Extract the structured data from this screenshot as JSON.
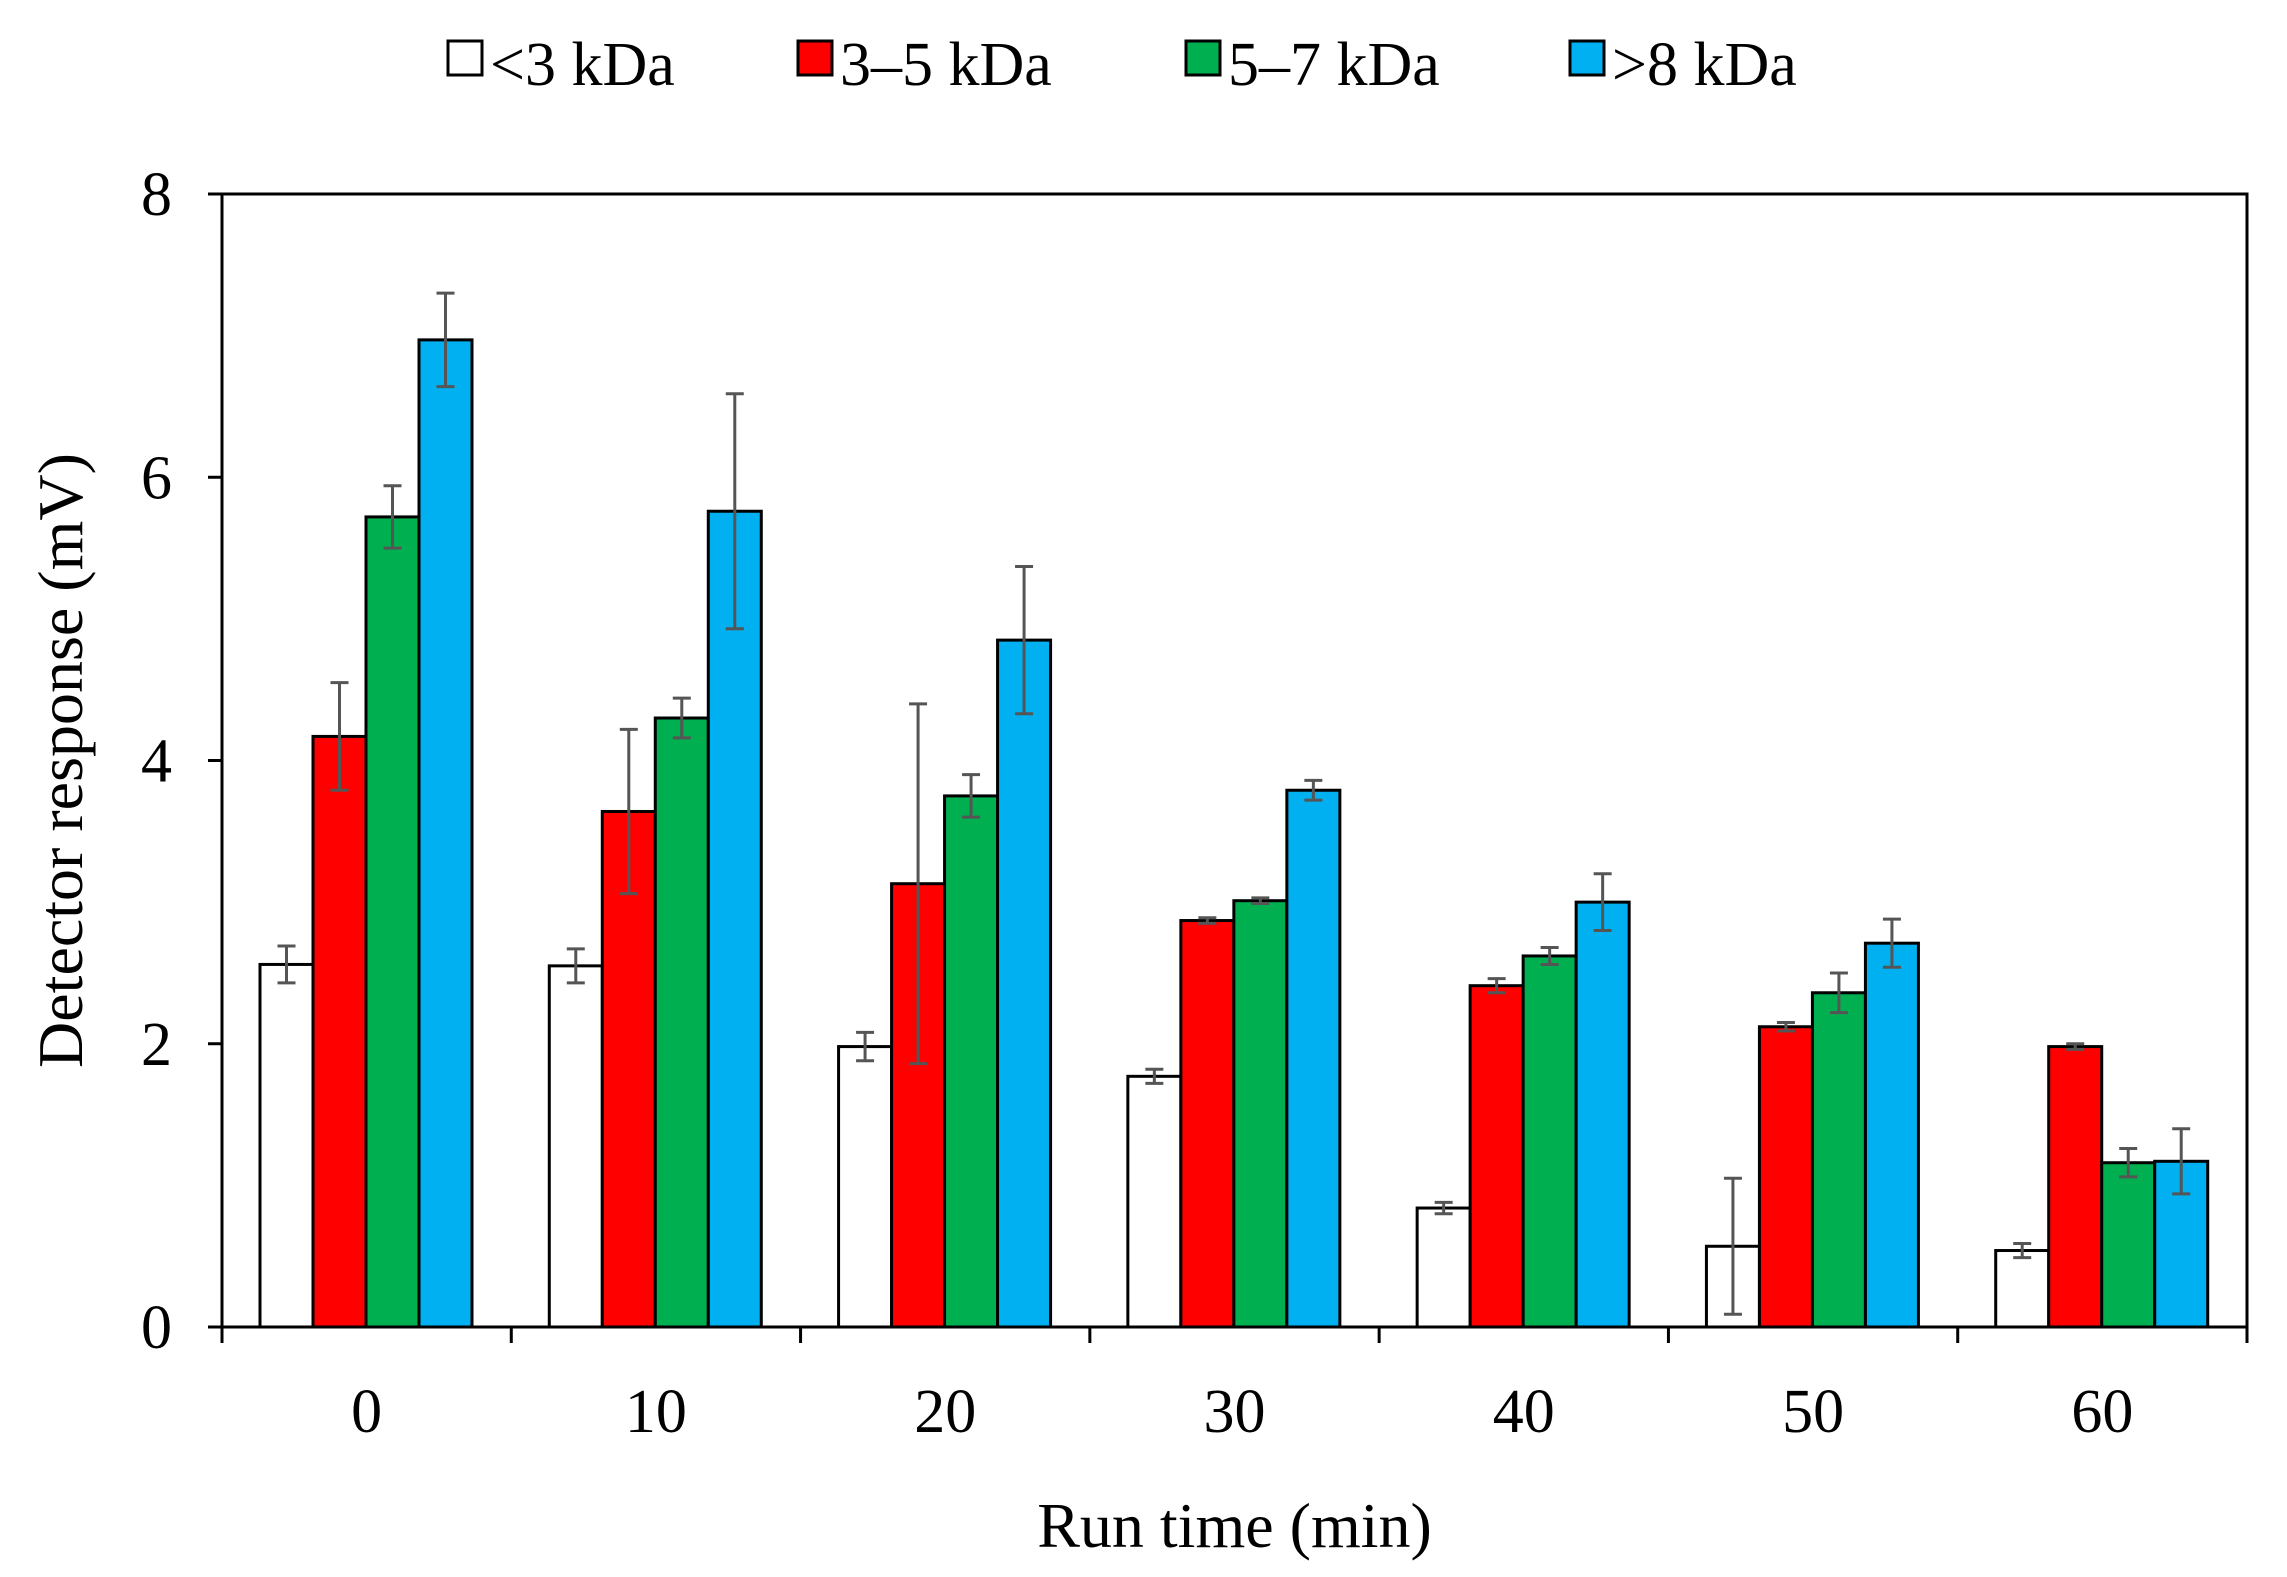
{
  "chart_data": {
    "type": "bar",
    "title": "",
    "xlabel": "Run time (min)",
    "ylabel": "Detector response (mV)",
    "ylim": [
      0,
      8
    ],
    "yticks": [
      "0",
      "2",
      "4",
      "6",
      "8"
    ],
    "ytick_values": [
      0,
      2,
      4,
      6,
      8
    ],
    "categories": [
      "0",
      "10",
      "20",
      "30",
      "40",
      "50",
      "60"
    ],
    "grid": false,
    "legend_position": "top",
    "series": [
      {
        "name": "<3 kDa",
        "color": "#ffffff",
        "values": [
          2.56,
          2.55,
          1.98,
          1.77,
          0.84,
          0.57,
          0.54
        ],
        "errors": [
          0.13,
          0.12,
          0.1,
          0.05,
          0.04,
          0.48,
          0.05
        ]
      },
      {
        "name": "3–5 kDa",
        "color": "#ff0000",
        "values": [
          4.17,
          3.64,
          3.13,
          2.87,
          2.41,
          2.12,
          1.98
        ],
        "errors": [
          0.38,
          0.58,
          1.27,
          0.02,
          0.05,
          0.03,
          0.02
        ]
      },
      {
        "name": "5–7 kDa",
        "color": "#00b050",
        "values": [
          5.72,
          4.3,
          3.75,
          3.01,
          2.62,
          2.36,
          1.16
        ],
        "errors": [
          0.22,
          0.14,
          0.15,
          0.02,
          0.06,
          0.14,
          0.1
        ]
      },
      {
        "name": ">8 kDa",
        "color": "#00b0f0",
        "values": [
          6.97,
          5.76,
          4.85,
          3.79,
          3.0,
          2.71,
          1.17
        ],
        "errors": [
          0.33,
          0.83,
          0.52,
          0.07,
          0.2,
          0.17,
          0.23
        ]
      }
    ]
  }
}
